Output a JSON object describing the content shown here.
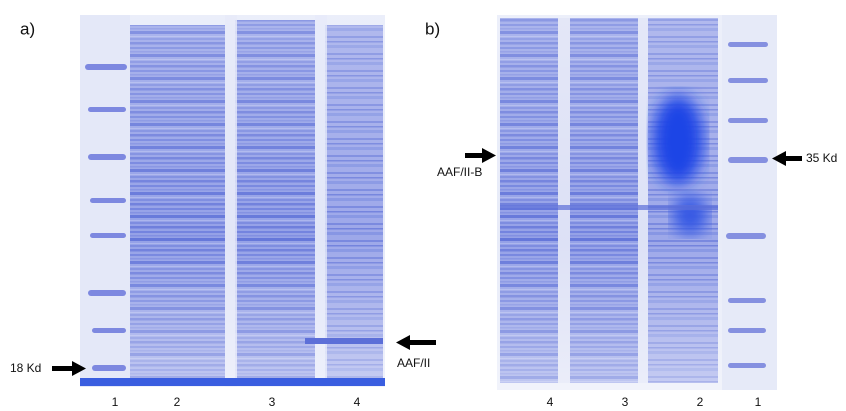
{
  "panels": [
    {
      "label": "a)",
      "lanes": [
        "1",
        "2",
        "3",
        "4"
      ],
      "markers": [
        "18 Kd",
        "AAF/II"
      ]
    },
    {
      "label": "b)",
      "lanes": [
        "4",
        "3",
        "2",
        "1"
      ],
      "markers": [
        "AAF/II-B",
        "35 Kd"
      ]
    }
  ]
}
